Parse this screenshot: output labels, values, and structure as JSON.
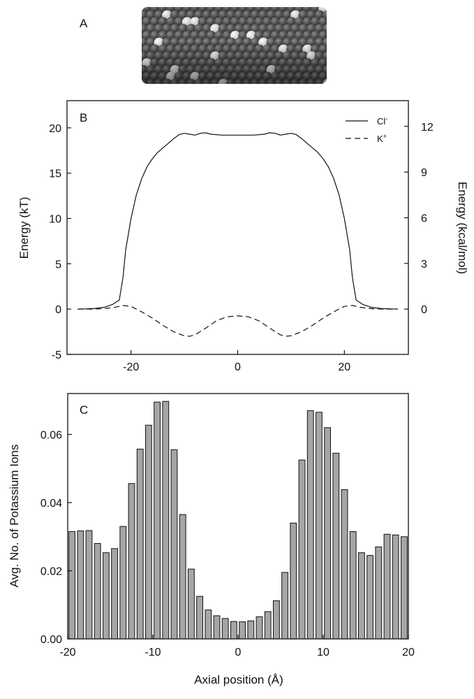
{
  "panels": {
    "a_label": "A",
    "b_label": "B",
    "c_label": "C"
  },
  "chart_data": [
    {
      "id": "energy",
      "type": "line",
      "xlim": [
        -32,
        32
      ],
      "ylim": [
        -5,
        23
      ],
      "yticks": [
        -5,
        0,
        5,
        10,
        15,
        20
      ],
      "xticks": [
        -20,
        0,
        20
      ],
      "ylabel": "Energy (kT)",
      "y2label": "Energy (kcal/mol)",
      "y2ticks": [
        {
          "label": "0",
          "kT": 0
        },
        {
          "label": "3",
          "kT": 5.04
        },
        {
          "label": "6",
          "kT": 10.08
        },
        {
          "label": "9",
          "kT": 15.12
        },
        {
          "label": "12",
          "kT": 20.16
        }
      ],
      "legend": [
        {
          "name": "Cl",
          "sup": "-",
          "style": "solid"
        },
        {
          "name": "K",
          "sup": "+",
          "style": "dashed"
        }
      ],
      "series": [
        {
          "name": "Cl-",
          "style": "solid",
          "points": [
            [
              -30,
              0
            ],
            [
              -27,
              0.05
            ],
            [
              -25,
              0.2
            ],
            [
              -23.5,
              0.5
            ],
            [
              -22.2,
              1.0
            ],
            [
              -21.5,
              3.5
            ],
            [
              -21,
              6.5
            ],
            [
              -20,
              10
            ],
            [
              -19,
              12.6
            ],
            [
              -18,
              14.4
            ],
            [
              -17,
              15.7
            ],
            [
              -16,
              16.6
            ],
            [
              -15,
              17.3
            ],
            [
              -14,
              17.8
            ],
            [
              -13,
              18.3
            ],
            [
              -12,
              18.8
            ],
            [
              -11,
              19.25
            ],
            [
              -10,
              19.4
            ],
            [
              -9,
              19.3
            ],
            [
              -8,
              19.2
            ],
            [
              -7,
              19.4
            ],
            [
              -6,
              19.45
            ],
            [
              -5,
              19.3
            ],
            [
              -3,
              19.2
            ],
            [
              0,
              19.2
            ],
            [
              3,
              19.2
            ],
            [
              5,
              19.3
            ],
            [
              6,
              19.45
            ],
            [
              7,
              19.4
            ],
            [
              8,
              19.2
            ],
            [
              9,
              19.3
            ],
            [
              10,
              19.4
            ],
            [
              11,
              19.25
            ],
            [
              12,
              18.8
            ],
            [
              13,
              18.3
            ],
            [
              14,
              17.8
            ],
            [
              15,
              17.3
            ],
            [
              16,
              16.6
            ],
            [
              17,
              15.7
            ],
            [
              18,
              14.4
            ],
            [
              19,
              12.6
            ],
            [
              20,
              10
            ],
            [
              21,
              6.5
            ],
            [
              21.5,
              3.5
            ],
            [
              22.2,
              1.0
            ],
            [
              23.5,
              0.5
            ],
            [
              25,
              0.2
            ],
            [
              27,
              0.05
            ],
            [
              30,
              0
            ]
          ]
        },
        {
          "name": "K+",
          "style": "dashed",
          "points": [
            [
              -30,
              0
            ],
            [
              -27,
              0
            ],
            [
              -25,
              0.05
            ],
            [
              -23,
              0.2
            ],
            [
              -21.5,
              0.4
            ],
            [
              -20,
              0.3
            ],
            [
              -18,
              -0.3
            ],
            [
              -16,
              -1.0
            ],
            [
              -14,
              -1.8
            ],
            [
              -12,
              -2.5
            ],
            [
              -10,
              -2.95
            ],
            [
              -9,
              -3.0
            ],
            [
              -8,
              -2.85
            ],
            [
              -6,
              -2.1
            ],
            [
              -4,
              -1.3
            ],
            [
              -2,
              -0.85
            ],
            [
              0,
              -0.75
            ],
            [
              2,
              -0.85
            ],
            [
              4,
              -1.3
            ],
            [
              6,
              -2.1
            ],
            [
              8,
              -2.85
            ],
            [
              9,
              -3.0
            ],
            [
              10,
              -2.95
            ],
            [
              12,
              -2.5
            ],
            [
              14,
              -1.8
            ],
            [
              16,
              -1.0
            ],
            [
              18,
              -0.3
            ],
            [
              20,
              0.3
            ],
            [
              21.5,
              0.4
            ],
            [
              23,
              0.2
            ],
            [
              25,
              0.05
            ],
            [
              27,
              0
            ],
            [
              30,
              0
            ]
          ]
        }
      ]
    },
    {
      "id": "ions",
      "type": "bar",
      "xlim": [
        -20,
        20
      ],
      "ylim": [
        0,
        0.072
      ],
      "xticks": [
        -20,
        -10,
        0,
        10,
        20
      ],
      "yticks": [
        0,
        0.02,
        0.04,
        0.06
      ],
      "ytick_labels": [
        "0.00",
        "0.02",
        "0.04",
        "0.06"
      ],
      "xlabel": "Axial position (Å)",
      "ylabel": "Avg. No. of Potassium Ions",
      "x": [
        -19.5,
        -18.5,
        -17.5,
        -16.5,
        -15.5,
        -14.5,
        -13.5,
        -12.5,
        -11.5,
        -10.5,
        -9.5,
        -8.5,
        -7.5,
        -6.5,
        -5.5,
        -4.5,
        -3.5,
        -2.5,
        -1.5,
        -0.5,
        0.5,
        1.5,
        2.5,
        3.5,
        4.5,
        5.5,
        6.5,
        7.5,
        8.5,
        9.5,
        10.5,
        11.5,
        12.5,
        13.5,
        14.5,
        15.5,
        16.5,
        17.5,
        18.5,
        19.5
      ],
      "values": [
        0.0315,
        0.0317,
        0.0318,
        0.028,
        0.0253,
        0.0265,
        0.033,
        0.0456,
        0.0557,
        0.0627,
        0.0695,
        0.0697,
        0.0555,
        0.0365,
        0.0205,
        0.0125,
        0.0085,
        0.0068,
        0.006,
        0.0051,
        0.005,
        0.0053,
        0.0065,
        0.008,
        0.0112,
        0.0195,
        0.034,
        0.0525,
        0.067,
        0.0665,
        0.062,
        0.0545,
        0.0438,
        0.0315,
        0.0253,
        0.0245,
        0.027,
        0.0307,
        0.0305,
        0.03
      ]
    }
  ]
}
